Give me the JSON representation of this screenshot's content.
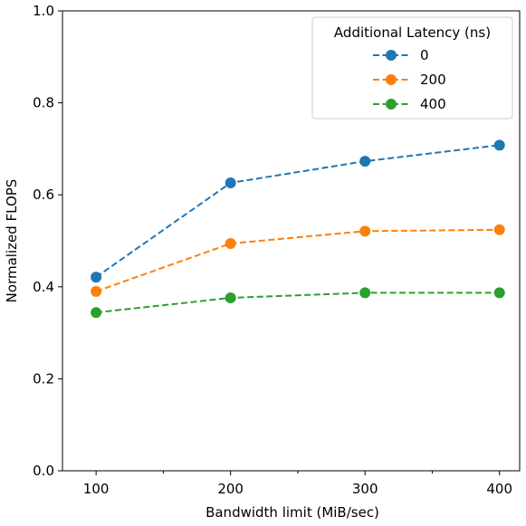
{
  "chart_data": {
    "type": "line",
    "xlabel": "Bandwidth limit (MiB/sec)",
    "ylabel": "Normalized FLOPS",
    "x": [
      100,
      200,
      300,
      400
    ],
    "x_major_ticks": [
      100,
      200,
      300,
      400
    ],
    "x_minor_ticks": [
      150,
      250,
      350
    ],
    "xlim": [
      75,
      415
    ],
    "ylim": [
      0.0,
      1.0
    ],
    "y_ticks": [
      0.0,
      0.2,
      0.4,
      0.6,
      0.8,
      1.0
    ],
    "y_tick_labels": [
      "0.0",
      "0.2",
      "0.4",
      "0.6",
      "0.8",
      "1.0"
    ],
    "x_tick_labels": [
      "100",
      "200",
      "300",
      "400"
    ],
    "grid": false,
    "legend": {
      "title": "Additional Latency (ns)",
      "placement": "top-right"
    },
    "line_style": "dashed",
    "marker": "circle",
    "series": [
      {
        "name": "0",
        "color": "#1f77b4",
        "values": [
          0.421,
          0.626,
          0.673,
          0.708
        ]
      },
      {
        "name": "200",
        "color": "#ff7f0e",
        "values": [
          0.39,
          0.494,
          0.521,
          0.524
        ]
      },
      {
        "name": "400",
        "color": "#2ca02c",
        "values": [
          0.344,
          0.376,
          0.387,
          0.387
        ]
      }
    ]
  }
}
